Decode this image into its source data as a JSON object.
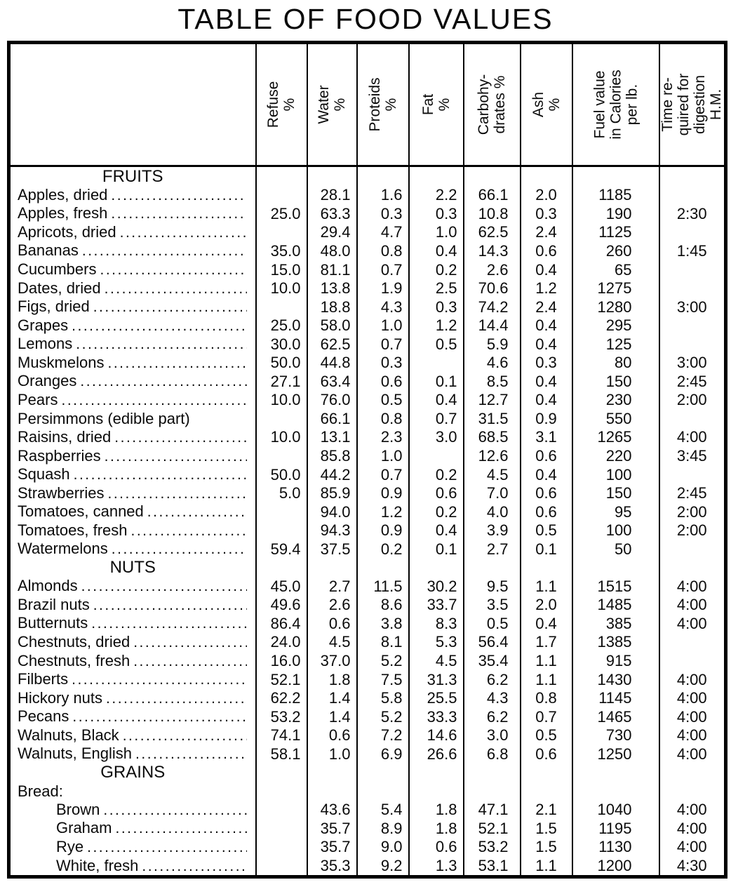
{
  "title": "TABLE OF FOOD VALUES",
  "table": {
    "columns": [
      "Refuse\n%",
      "Water\n%",
      "Proteids\n%",
      "Fat\n%",
      "Carbohy-\ndrates %",
      "Ash\n%",
      "Fuel value\nin Calories\nper lb.",
      "Time re-\nquired for\ndigestion\nH.M."
    ],
    "sections": [
      {
        "header": "FRUITS",
        "rows": [
          {
            "name": "Apples, dried",
            "leader": true,
            "indent": false,
            "values": [
              "",
              "28.1",
              "1.6",
              "2.2",
              "66.1",
              "2.0",
              "1185",
              ""
            ]
          },
          {
            "name": "Apples, fresh",
            "leader": true,
            "indent": false,
            "values": [
              "25.0",
              "63.3",
              "0.3",
              "0.3",
              "10.8",
              "0.3",
              "190",
              "2:30"
            ]
          },
          {
            "name": "Apricots, dried",
            "leader": true,
            "indent": false,
            "values": [
              "",
              "29.4",
              "4.7",
              "1.0",
              "62.5",
              "2.4",
              "1125",
              ""
            ]
          },
          {
            "name": "Bananas",
            "leader": true,
            "indent": false,
            "values": [
              "35.0",
              "48.0",
              "0.8",
              "0.4",
              "14.3",
              "0.6",
              "260",
              "1:45"
            ]
          },
          {
            "name": "Cucumbers",
            "leader": true,
            "indent": false,
            "values": [
              "15.0",
              "81.1",
              "0.7",
              "0.2",
              "2.6",
              "0.4",
              "65",
              ""
            ]
          },
          {
            "name": "Dates, dried",
            "leader": true,
            "indent": false,
            "values": [
              "10.0",
              "13.8",
              "1.9",
              "2.5",
              "70.6",
              "1.2",
              "1275",
              ""
            ]
          },
          {
            "name": "Figs, dried",
            "leader": true,
            "indent": false,
            "values": [
              "",
              "18.8",
              "4.3",
              "0.3",
              "74.2",
              "2.4",
              "1280",
              "3:00"
            ]
          },
          {
            "name": "Grapes",
            "leader": true,
            "indent": false,
            "values": [
              "25.0",
              "58.0",
              "1.0",
              "1.2",
              "14.4",
              "0.4",
              "295",
              ""
            ]
          },
          {
            "name": "Lemons",
            "leader": true,
            "indent": false,
            "values": [
              "30.0",
              "62.5",
              "0.7",
              "0.5",
              "5.9",
              "0.4",
              "125",
              ""
            ]
          },
          {
            "name": "Muskmelons",
            "leader": true,
            "indent": false,
            "values": [
              "50.0",
              "44.8",
              "0.3",
              "",
              "4.6",
              "0.3",
              "80",
              "3:00"
            ]
          },
          {
            "name": "Oranges",
            "leader": true,
            "indent": false,
            "values": [
              "27.1",
              "63.4",
              "0.6",
              "0.1",
              "8.5",
              "0.4",
              "150",
              "2:45"
            ]
          },
          {
            "name": "Pears",
            "leader": true,
            "indent": false,
            "values": [
              "10.0",
              "76.0",
              "0.5",
              "0.4",
              "12.7",
              "0.4",
              "230",
              "2:00"
            ]
          },
          {
            "name": "Persimmons (edible part)",
            "leader": false,
            "indent": false,
            "values": [
              "",
              "66.1",
              "0.8",
              "0.7",
              "31.5",
              "0.9",
              "550",
              ""
            ]
          },
          {
            "name": "Raisins, dried",
            "leader": true,
            "indent": false,
            "values": [
              "10.0",
              "13.1",
              "2.3",
              "3.0",
              "68.5",
              "3.1",
              "1265",
              "4:00"
            ]
          },
          {
            "name": "Raspberries",
            "leader": true,
            "indent": false,
            "values": [
              "",
              "85.8",
              "1.0",
              "",
              "12.6",
              "0.6",
              "220",
              "3:45"
            ]
          },
          {
            "name": "Squash",
            "leader": true,
            "indent": false,
            "values": [
              "50.0",
              "44.2",
              "0.7",
              "0.2",
              "4.5",
              "0.4",
              "100",
              ""
            ]
          },
          {
            "name": "Strawberries",
            "leader": true,
            "indent": false,
            "values": [
              "5.0",
              "85.9",
              "0.9",
              "0.6",
              "7.0",
              "0.6",
              "150",
              "2:45"
            ]
          },
          {
            "name": "Tomatoes, canned",
            "leader": true,
            "indent": false,
            "values": [
              "",
              "94.0",
              "1.2",
              "0.2",
              "4.0",
              "0.6",
              "95",
              "2:00"
            ]
          },
          {
            "name": "Tomatoes, fresh",
            "leader": true,
            "indent": false,
            "values": [
              "",
              "94.3",
              "0.9",
              "0.4",
              "3.9",
              "0.5",
              "100",
              "2:00"
            ]
          },
          {
            "name": "Watermelons",
            "leader": true,
            "indent": false,
            "values": [
              "59.4",
              "37.5",
              "0.2",
              "0.1",
              "2.7",
              "0.1",
              "50",
              ""
            ]
          }
        ]
      },
      {
        "header": "NUTS",
        "rows": [
          {
            "name": "Almonds",
            "leader": true,
            "indent": false,
            "values": [
              "45.0",
              "2.7",
              "11.5",
              "30.2",
              "9.5",
              "1.1",
              "1515",
              "4:00"
            ]
          },
          {
            "name": "Brazil nuts",
            "leader": true,
            "indent": false,
            "values": [
              "49.6",
              "2.6",
              "8.6",
              "33.7",
              "3.5",
              "2.0",
              "1485",
              "4:00"
            ]
          },
          {
            "name": "Butternuts",
            "leader": true,
            "indent": false,
            "values": [
              "86.4",
              "0.6",
              "3.8",
              "8.3",
              "0.5",
              "0.4",
              "385",
              "4:00"
            ]
          },
          {
            "name": "Chestnuts, dried",
            "leader": true,
            "indent": false,
            "values": [
              "24.0",
              "4.5",
              "8.1",
              "5.3",
              "56.4",
              "1.7",
              "1385",
              ""
            ]
          },
          {
            "name": "Chestnuts, fresh",
            "leader": true,
            "indent": false,
            "values": [
              "16.0",
              "37.0",
              "5.2",
              "4.5",
              "35.4",
              "1.1",
              "915",
              ""
            ]
          },
          {
            "name": "Filberts",
            "leader": true,
            "indent": false,
            "values": [
              "52.1",
              "1.8",
              "7.5",
              "31.3",
              "6.2",
              "1.1",
              "1430",
              "4:00"
            ]
          },
          {
            "name": "Hickory nuts",
            "leader": true,
            "indent": false,
            "values": [
              "62.2",
              "1.4",
              "5.8",
              "25.5",
              "4.3",
              "0.8",
              "1145",
              "4:00"
            ]
          },
          {
            "name": "Pecans",
            "leader": true,
            "indent": false,
            "values": [
              "53.2",
              "1.4",
              "5.2",
              "33.3",
              "6.2",
              "0.7",
              "1465",
              "4:00"
            ]
          },
          {
            "name": "Walnuts, Black",
            "leader": true,
            "indent": false,
            "values": [
              "74.1",
              "0.6",
              "7.2",
              "14.6",
              "3.0",
              "0.5",
              "730",
              "4:00"
            ]
          },
          {
            "name": "Walnuts, English",
            "leader": true,
            "indent": false,
            "values": [
              "58.1",
              "1.0",
              "6.9",
              "26.6",
              "6.8",
              "0.6",
              "1250",
              "4:00"
            ]
          }
        ]
      },
      {
        "header": "GRAINS",
        "subheader": "Bread:",
        "rows": [
          {
            "name": "Brown",
            "leader": true,
            "indent": true,
            "values": [
              "",
              "43.6",
              "5.4",
              "1.8",
              "47.1",
              "2.1",
              "1040",
              "4:00"
            ]
          },
          {
            "name": "Graham",
            "leader": true,
            "indent": true,
            "values": [
              "",
              "35.7",
              "8.9",
              "1.8",
              "52.1",
              "1.5",
              "1195",
              "4:00"
            ]
          },
          {
            "name": "Rye",
            "leader": true,
            "indent": true,
            "values": [
              "",
              "35.7",
              "9.0",
              "0.6",
              "53.2",
              "1.5",
              "1130",
              "4:00"
            ]
          },
          {
            "name": "White, fresh",
            "leader": true,
            "indent": true,
            "values": [
              "",
              "35.3",
              "9.2",
              "1.3",
              "53.1",
              "1.1",
              "1200",
              "4:30"
            ]
          }
        ]
      }
    ]
  }
}
